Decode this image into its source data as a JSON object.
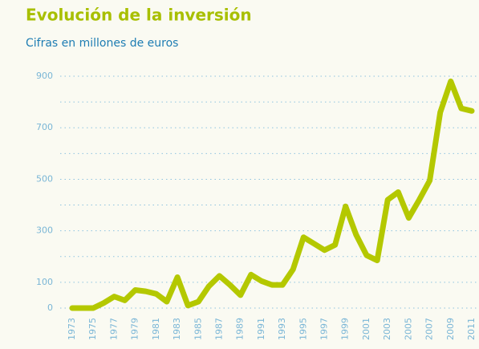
{
  "chart_data": {
    "type": "line",
    "title": "Evolución de la inversión",
    "subtitle": "Cifras en millones de euros",
    "categories": [
      "1973",
      null,
      "1975",
      null,
      "1977",
      null,
      "1979",
      null,
      "1981",
      null,
      "1983",
      null,
      "1985",
      null,
      "1987",
      null,
      "1989",
      null,
      "1991",
      null,
      "1993",
      null,
      "1995",
      null,
      "1997",
      null,
      "1999",
      null,
      "2001",
      null,
      "2003",
      null,
      "2005",
      null,
      "2007",
      null,
      "2009",
      null,
      "2011"
    ],
    "series": [
      {
        "color": "#b4c800",
        "values": [
          0,
          0,
          0,
          20,
          45,
          30,
          70,
          65,
          55,
          25,
          120,
          10,
          25,
          85,
          125,
          90,
          50,
          130,
          105,
          90,
          90,
          150,
          275,
          250,
          225,
          245,
          395,
          285,
          205,
          185,
          420,
          450,
          350,
          420,
          495,
          760,
          880,
          775,
          765
        ]
      }
    ],
    "ylim": [
      0,
      900
    ],
    "yticks": [
      0,
      100,
      300,
      500,
      700,
      900
    ],
    "minor_gridlines": [
      200,
      400,
      600,
      800
    ],
    "grid": true
  }
}
